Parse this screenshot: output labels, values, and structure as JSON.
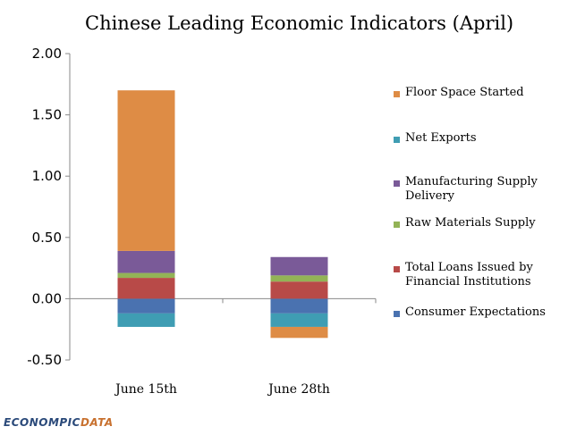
{
  "chart_data": {
    "type": "stacked-bar",
    "title": "Chinese Leading Economic Indicators (April)",
    "categories": [
      "June 15th",
      "June 28th"
    ],
    "ylim": [
      -0.5,
      2.0
    ],
    "yticks": [
      "2.00",
      "1.50",
      "1.00",
      "0.50",
      "0.00",
      "-0.50"
    ],
    "ytick_values": [
      2.0,
      1.5,
      1.0,
      0.5,
      0.0,
      -0.5
    ],
    "series": [
      {
        "name": "Consumer Expectations",
        "color": "#4a72b0",
        "values": [
          -0.12,
          -0.12
        ]
      },
      {
        "name": "Total Loans Issued by Financial Institutions",
        "color": "#b84a48",
        "values": [
          0.17,
          0.14
        ]
      },
      {
        "name": "Raw Materials Supply",
        "color": "#93b356",
        "values": [
          0.04,
          0.05
        ]
      },
      {
        "name": "Manufacturing Supply Delivery",
        "color": "#7a5a98",
        "values": [
          0.18,
          0.15
        ]
      },
      {
        "name": "Net Exports",
        "color": "#3f9db3",
        "values": [
          -0.11,
          -0.11
        ]
      },
      {
        "name": "Floor Space Started",
        "color": "#de8c45",
        "values": [
          1.31,
          -0.09
        ]
      }
    ],
    "legend_order": [
      "Floor Space Started",
      "Net Exports",
      "Manufacturing Supply Delivery",
      "Raw Materials Supply",
      "Total Loans Issued by Financial Institutions",
      "Consumer Expectations"
    ]
  },
  "watermark": {
    "part1": "ECONOMPIC",
    "part2": "DATA"
  }
}
